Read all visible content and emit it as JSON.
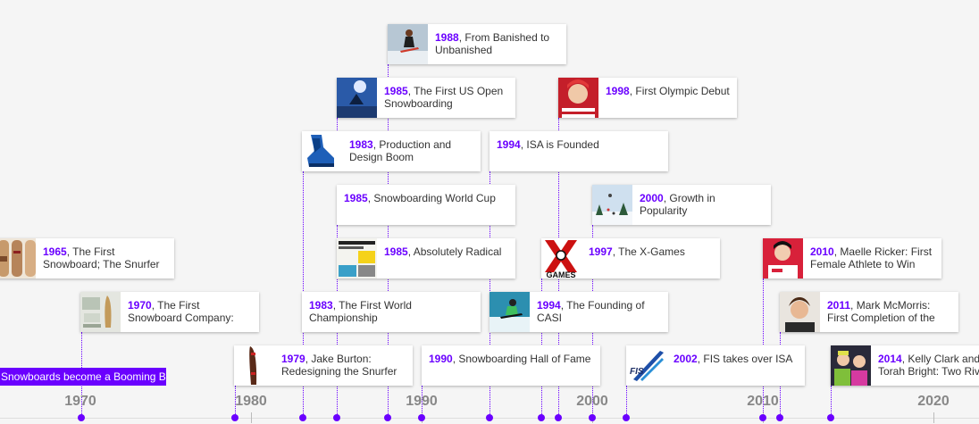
{
  "span": {
    "label": "Snowboards become a Booming B"
  },
  "axis": {
    "labels": [
      "1970",
      "1980",
      "1990",
      "2000",
      "2010",
      "2020"
    ]
  },
  "colors": {
    "accent": "#6a00ff",
    "card": "#ffffff",
    "background": "#f5f5f5",
    "axis_text": "#888888"
  },
  "events": [
    {
      "year": "1965",
      "title": ", The First Snowboard; The Snurfer",
      "thumb": "snurfer-board-photo"
    },
    {
      "year": "1970",
      "title": ", The First Snowboard Company:",
      "thumb": "snowboard-company-photo"
    },
    {
      "year": "1979",
      "title": ", Jake Burton: Redesigning the Snurfer",
      "thumb": "burton-board-photo"
    },
    {
      "year": "1983",
      "title": ", Production and Design Boom",
      "thumb": "binding-photo"
    },
    {
      "year": "1983",
      "title": ", The First World Championship"
    },
    {
      "year": "1985",
      "title": ", The First US Open Snowboarding",
      "thumb": "us-open-photo"
    },
    {
      "year": "1985",
      "title": ", Snowboarding World Cup"
    },
    {
      "year": "1985",
      "title": ", Absolutely Radical",
      "thumb": "magazine-cover-photo"
    },
    {
      "year": "1988",
      "title": ", From Banished to Unbanished",
      "thumb": "rider-jump-photo"
    },
    {
      "year": "1990",
      "title": ", Snowboarding Hall of Fame"
    },
    {
      "year": "1994",
      "title": ", ISA is Founded"
    },
    {
      "year": "1994",
      "title": ", The Founding of CASI",
      "thumb": "casi-rider-photo"
    },
    {
      "year": "1997",
      "title": ", The X-Games",
      "thumb": "x-games-logo"
    },
    {
      "year": "1998",
      "title": ", First Olympic Debut",
      "thumb": "olympic-athlete-photo"
    },
    {
      "year": "2000",
      "title": ", Growth in Popularity",
      "thumb": "ski-resort-photo"
    },
    {
      "year": "2002",
      "title": ", FIS takes over ISA",
      "thumb": "fis-logo"
    },
    {
      "year": "2010",
      "title": ", Maelle Ricker: First Female Athlete to Win",
      "thumb": "ricker-photo"
    },
    {
      "year": "2011",
      "title": ", Mark McMorris: First Completion of the",
      "thumb": "mcmorris-photo"
    },
    {
      "year": "2014",
      "title": ", Kelly Clark and Torah Bright: Two Riv",
      "thumb": "clark-bright-photo"
    }
  ],
  "xgames_logo_text": "GAMES",
  "fis_logo_text": "FIS"
}
